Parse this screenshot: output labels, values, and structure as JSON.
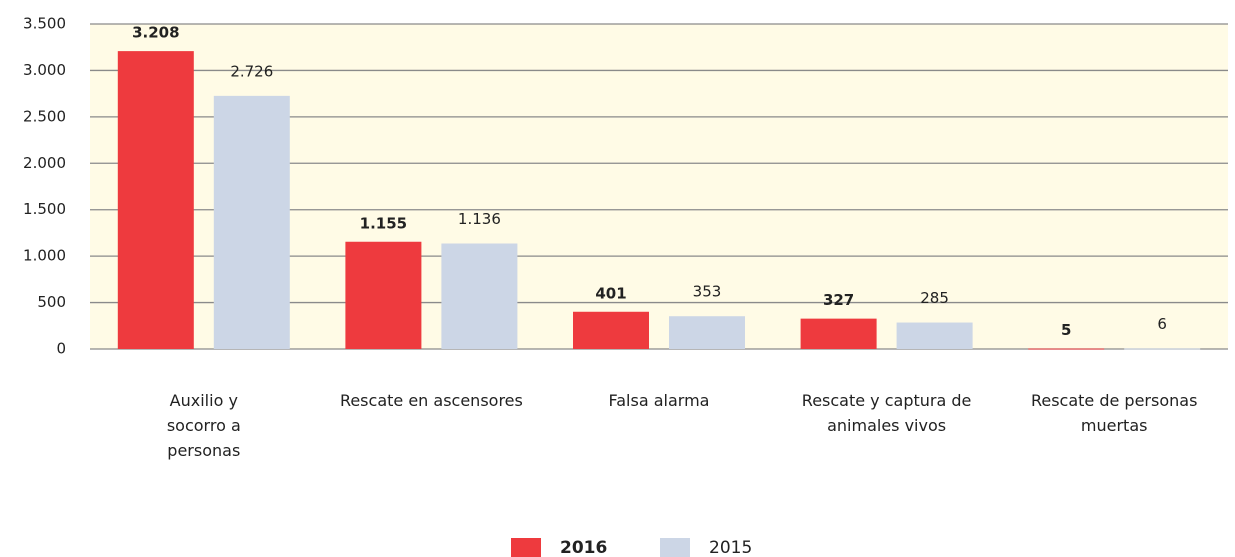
{
  "chart_data": {
    "type": "bar",
    "categories": [
      "Auxilio y socorro a personas",
      "Rescate en ascensores",
      "Falsa alarma",
      "Rescate y captura de animales vivos",
      "Rescate de personas muertas"
    ],
    "series": [
      {
        "name": "2016",
        "color": "#ee3a3e",
        "values": [
          3208,
          1155,
          401,
          327,
          5
        ],
        "value_labels": [
          "3.208",
          "1.155",
          "401",
          "327",
          "5"
        ]
      },
      {
        "name": "2015",
        "color": "#ccd6e6",
        "values": [
          2726,
          1136,
          353,
          285,
          6
        ],
        "value_labels": [
          "2.726",
          "1.136",
          "353",
          "285",
          "6"
        ]
      }
    ],
    "ylim": [
      0,
      3500
    ],
    "yticks": [
      0,
      500,
      {
        "value": 1000,
        "label": "1.000"
      },
      {
        "value": 1500,
        "label": "1.500"
      },
      {
        "value": 2000,
        "label": "2.000"
      },
      {
        "value": 2500,
        "label": "2.500"
      },
      {
        "value": 3000,
        "label": "3.000"
      },
      {
        "value": 3500,
        "label": "3.500"
      }
    ],
    "grid": true,
    "plot_background": "#fffbe6",
    "legend": "bottom"
  }
}
